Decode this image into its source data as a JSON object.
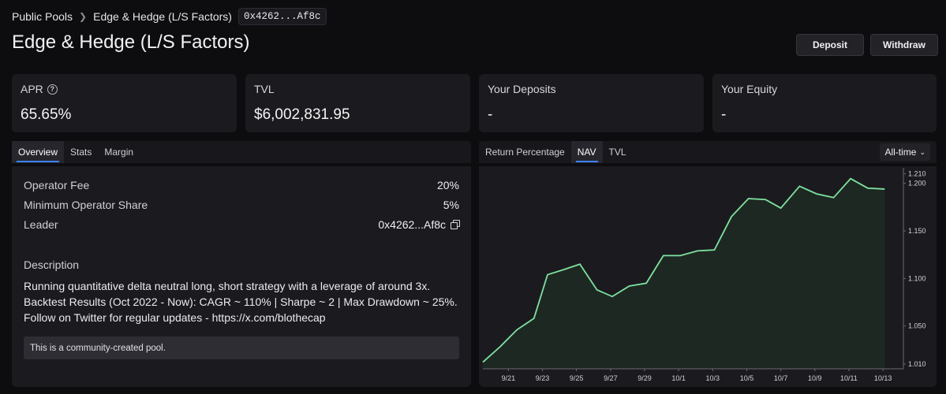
{
  "breadcrumb": {
    "root": "Public Pools",
    "current": "Edge & Hedge (L/S Factors)",
    "address": "0x4262...Af8c"
  },
  "page": {
    "title": "Edge & Hedge (L/S Factors)"
  },
  "actions": {
    "deposit": "Deposit",
    "withdraw": "Withdraw"
  },
  "stats": [
    {
      "label": "APR",
      "value": "65.65%"
    },
    {
      "label": "TVL",
      "value": "$6,002,831.95"
    },
    {
      "label": "Your Deposits",
      "value": "-"
    },
    {
      "label": "Your Equity",
      "value": "-"
    }
  ],
  "icons": {
    "apr_info": "info-circle-icon",
    "copy": "copy-icon",
    "range_chevron": "chevron-down-icon"
  },
  "left_tabs": [
    "Overview",
    "Stats",
    "Margin"
  ],
  "left_active_tab": "Overview",
  "overview": {
    "rows": [
      {
        "label": "Operator Fee",
        "value": "20%"
      },
      {
        "label": "Minimum Operator Share",
        "value": "5%"
      },
      {
        "label": "Leader",
        "value": "0x4262...Af8c"
      }
    ],
    "description_title": "Description",
    "description": "Running quantitative delta neutral long, short strategy with a leverage of around 3x. Backtest Results (Oct 2022 - Now): CAGR ~ 110% | Sharpe ~ 2 | Max Drawdown ~ 25%. Follow on Twitter for regular updates - https://x.com/blothecap",
    "note": "This is a community-created pool."
  },
  "right_tabs": [
    "Return Percentage",
    "NAV",
    "TVL"
  ],
  "right_active_tab": "NAV",
  "range": {
    "selected": "All-time"
  },
  "colors": {
    "line": "#7ee2a0",
    "fill": "#1f2a24",
    "accent": "#3b82f6"
  },
  "chart_data": {
    "type": "area",
    "xlabel": "",
    "ylabel": "",
    "x_ticks": [
      "9/21",
      "9/23",
      "9/25",
      "9/27",
      "9/29",
      "10/1",
      "10/3",
      "10/5",
      "10/7",
      "10/9",
      "10/11",
      "10/13"
    ],
    "y_ticks": [
      1.01,
      1.05,
      1.1,
      1.15,
      1.2,
      1.21
    ],
    "ylim": [
      1.005,
      1.213
    ],
    "x_range": [
      19.5,
      44.2
    ],
    "points": [
      {
        "x": 19.5,
        "y": 1.012
      },
      {
        "x": 20.5,
        "y": 1.028
      },
      {
        "x": 21.5,
        "y": 1.046
      },
      {
        "x": 22.5,
        "y": 1.058
      },
      {
        "x": 23.3,
        "y": 1.104
      },
      {
        "x": 24.2,
        "y": 1.109
      },
      {
        "x": 25.2,
        "y": 1.115
      },
      {
        "x": 26.2,
        "y": 1.088
      },
      {
        "x": 27.1,
        "y": 1.081
      },
      {
        "x": 28.1,
        "y": 1.092
      },
      {
        "x": 29.1,
        "y": 1.095
      },
      {
        "x": 30.1,
        "y": 1.124
      },
      {
        "x": 31.1,
        "y": 1.124
      },
      {
        "x": 32.1,
        "y": 1.129
      },
      {
        "x": 33.1,
        "y": 1.13
      },
      {
        "x": 34.1,
        "y": 1.165
      },
      {
        "x": 35.1,
        "y": 1.184
      },
      {
        "x": 36.1,
        "y": 1.183
      },
      {
        "x": 37.0,
        "y": 1.174
      },
      {
        "x": 38.1,
        "y": 1.197
      },
      {
        "x": 39.1,
        "y": 1.189
      },
      {
        "x": 40.1,
        "y": 1.185
      },
      {
        "x": 41.1,
        "y": 1.205
      },
      {
        "x": 42.1,
        "y": 1.195
      },
      {
        "x": 43.1,
        "y": 1.194
      }
    ]
  }
}
